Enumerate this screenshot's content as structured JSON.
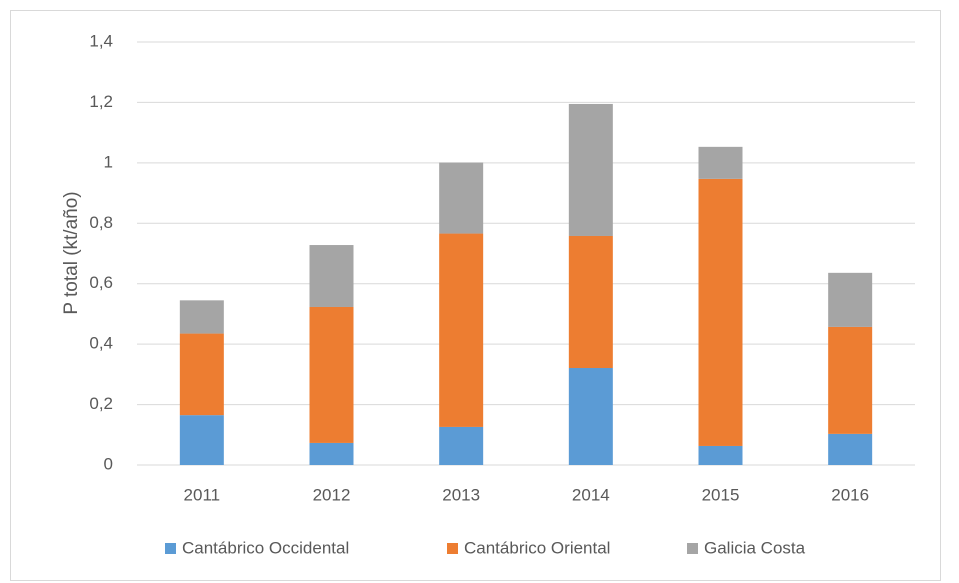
{
  "chart_data": {
    "type": "stacked_bar",
    "y_axis_label": "P total (kt/año)",
    "categories": [
      "2011",
      "2012",
      "2013",
      "2014",
      "2015",
      "2016"
    ],
    "series": [
      {
        "name": "Cantábrico Occidental",
        "color": "#5b9bd5",
        "values": [
          0.165,
          0.073,
          0.126,
          0.321,
          0.063,
          0.103
        ]
      },
      {
        "name": "Cantábrico Oriental",
        "color": "#ed7d31",
        "values": [
          0.27,
          0.45,
          0.64,
          0.437,
          0.884,
          0.354
        ]
      },
      {
        "name": "Galicia Costa",
        "color": "#a5a5a5",
        "values": [
          0.11,
          0.205,
          0.235,
          0.437,
          0.106,
          0.179
        ]
      }
    ],
    "ylim": [
      0,
      1.4
    ],
    "yticks": [
      0,
      {
        "value": 0.2,
        "label": "0,2"
      },
      {
        "value": 0.4,
        "label": "0,4"
      },
      {
        "value": 0.6,
        "label": "0,6"
      },
      {
        "value": 0.8,
        "label": "0,8"
      },
      1,
      {
        "value": 1.2,
        "label": "1,2"
      },
      {
        "value": 1.4,
        "label": "1,4"
      }
    ],
    "grid": true,
    "legend": "bottom"
  }
}
